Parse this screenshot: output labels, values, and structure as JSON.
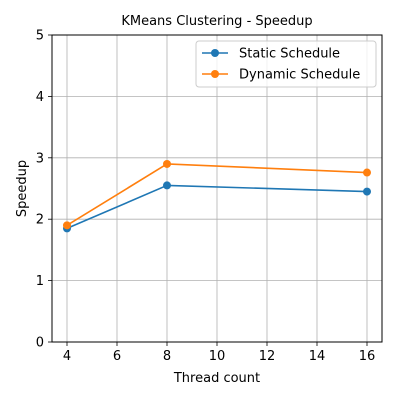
{
  "chart_data": {
    "type": "line",
    "title": "KMeans Clustering - Speedup",
    "xlabel": "Thread count",
    "ylabel": "Speedup",
    "x": [
      4,
      8,
      16
    ],
    "xlim": [
      3.4,
      16.6
    ],
    "ylim": [
      0,
      5
    ],
    "xticks": [
      4,
      6,
      8,
      10,
      12,
      14,
      16
    ],
    "yticks": [
      0,
      1,
      2,
      3,
      4,
      5
    ],
    "grid": true,
    "legend_position": "top-right",
    "series": [
      {
        "name": "Static Schedule",
        "color": "#1f77b4",
        "values": [
          1.85,
          2.55,
          2.45
        ]
      },
      {
        "name": "Dynamic Schedule",
        "color": "#ff7f0e",
        "values": [
          1.9,
          2.9,
          2.76
        ]
      }
    ]
  }
}
